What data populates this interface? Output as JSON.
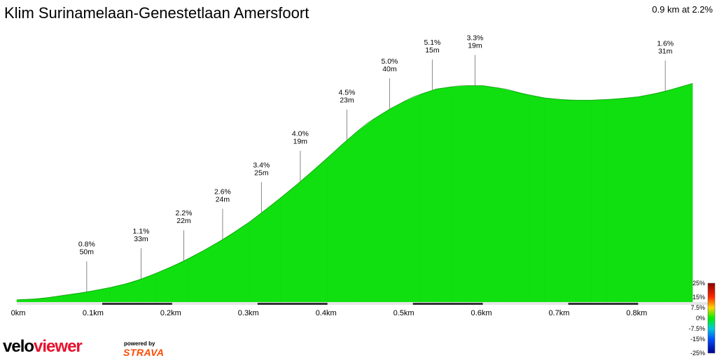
{
  "header": {
    "title": "Klim Surinamelaan-Genestetlaan Amersfoort",
    "summary": "0.9 km at 2.2%"
  },
  "branding": {
    "logo_part1": "velo",
    "logo_part2": "viewer",
    "powered_by": "powered by",
    "strava": "STRAVA"
  },
  "colors": {
    "logo_red": "#e8112d",
    "strava_orange": "#fc4c02"
  },
  "chart_data": {
    "type": "area",
    "title": "Klim Surinamelaan-Genestetlaan Amersfoort",
    "x_unit": "km",
    "x_ticks": [
      "0km",
      "0.1km",
      "0.2km",
      "0.3km",
      "0.4km",
      "0.5km",
      "0.6km",
      "0.7km",
      "0.8km"
    ],
    "x_tick_values": [
      0,
      0.1,
      0.2,
      0.3,
      0.4,
      0.5,
      0.6,
      0.7,
      0.8
    ],
    "xlim": [
      0,
      0.87
    ],
    "ylim": [
      0,
      20.5
    ],
    "profile": {
      "distance_km": [
        0,
        0.03,
        0.06,
        0.09,
        0.12,
        0.15,
        0.18,
        0.21,
        0.24,
        0.27,
        0.3,
        0.33,
        0.36,
        0.39,
        0.42,
        0.45,
        0.48,
        0.51,
        0.54,
        0.57,
        0.6,
        0.63,
        0.65,
        0.68,
        0.71,
        0.74,
        0.77,
        0.8,
        0.83,
        0.85,
        0.87
      ],
      "elevation_m": [
        0.2,
        0.3,
        0.6,
        0.9,
        1.3,
        1.8,
        2.6,
        3.5,
        4.6,
        5.8,
        7.2,
        8.8,
        10.5,
        12.3,
        14.2,
        16.0,
        17.3,
        18.4,
        19.1,
        19.4,
        19.4,
        19.1,
        18.7,
        18.3,
        18.1,
        18.1,
        18.2,
        18.4,
        18.8,
        19.2,
        19.6
      ]
    },
    "segment_labels": [
      {
        "at_km": 0.09,
        "grade": "0.8%",
        "length": "50m"
      },
      {
        "at_km": 0.16,
        "grade": "1.1%",
        "length": "33m"
      },
      {
        "at_km": 0.215,
        "grade": "2.2%",
        "length": "22m"
      },
      {
        "at_km": 0.265,
        "grade": "2.6%",
        "length": "24m"
      },
      {
        "at_km": 0.315,
        "grade": "3.4%",
        "length": "25m"
      },
      {
        "at_km": 0.365,
        "grade": "4.0%",
        "length": "19m"
      },
      {
        "at_km": 0.425,
        "grade": "4.5%",
        "length": "23m"
      },
      {
        "at_km": 0.48,
        "grade": "5.0%",
        "length": "40m"
      },
      {
        "at_km": 0.535,
        "grade": "5.1%",
        "length": "15m"
      },
      {
        "at_km": 0.59,
        "grade": "3.3%",
        "length": "19m"
      },
      {
        "at_km": 0.835,
        "grade": "1.6%",
        "length": "31m"
      }
    ],
    "grade_legend": {
      "labels": [
        "25%",
        "15%",
        "7.5%",
        "0%",
        "-7.5%",
        "-15%",
        "-25%"
      ],
      "colors": [
        "#8b0000",
        "#ff2a00",
        "#ffd400",
        "#00ee00",
        "#00c8d8",
        "#0050ff",
        "#00008b"
      ]
    },
    "grade_colors": {
      "1": "#10e010",
      "2": "#22e408",
      "2.5": "#3ce804",
      "3": "#55ec00",
      "3.5": "#6cf000",
      "4": "#80f000",
      "4.5": "#98f000",
      "5": "#a6f000",
      "5.2": "#b0f000"
    }
  }
}
